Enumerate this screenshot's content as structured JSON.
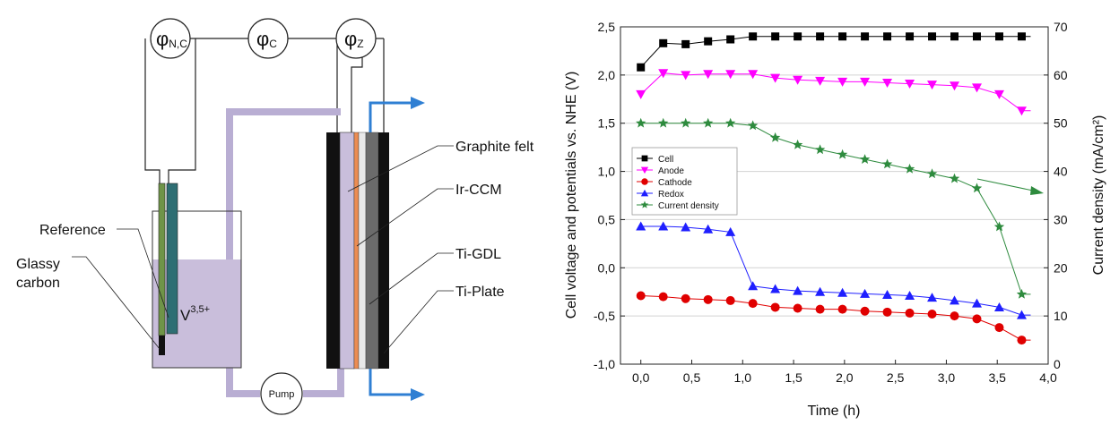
{
  "schematic": {
    "meter_left_base": "φ",
    "meter_left_sub": "N,C",
    "meter_mid_base": "φ",
    "meter_mid_sub": "C",
    "meter_right_base": "φ",
    "meter_right_sub": "Z",
    "label_reference": "Reference",
    "label_glassy_1": "Glassy",
    "label_glassy_2": "carbon",
    "electrolyte_base": "V",
    "electrolyte_sup": "3,5+",
    "label_graphite_felt": "Graphite felt",
    "label_ir_ccm": "Ir-CCM",
    "label_ti_gdl": "Ti-GDL",
    "label_ti_plate": "Ti-Plate",
    "pump_label": "Pump",
    "colors": {
      "tubing": "#b9aed3",
      "electrolyte": "#c9bedb",
      "flow_arrow": "#2f7fd3",
      "plate": "#111111",
      "membrane": "#ec8c52",
      "felt": "#6b6b6b",
      "reference_electrode": "#2e6e73",
      "glassy_electrode": "#6f9448"
    }
  },
  "chart_data": {
    "type": "line",
    "xlabel": "Time (h)",
    "ylabel": "Cell voltage and potentials vs. NHE (V)",
    "y2label": "Current density (mA/cm²)",
    "xlim": [
      -0.2,
      4.0
    ],
    "ylim": [
      -1.0,
      2.5
    ],
    "y2lim": [
      0,
      70
    ],
    "x_ticks": [
      "0,0",
      "0,5",
      "1,0",
      "1,5",
      "2,0",
      "2,5",
      "3,0",
      "3,5",
      "4,0"
    ],
    "y_ticks": [
      "-1,0",
      "-0,5",
      "0,0",
      "0,5",
      "1,0",
      "1,5",
      "2,0",
      "2,5"
    ],
    "y2_ticks": [
      "0",
      "10",
      "20",
      "30",
      "40",
      "50",
      "60",
      "70"
    ],
    "grid": "horizontal",
    "legend_position": "middle-left",
    "series": [
      {
        "name": "Cell",
        "axis": "left",
        "marker": "square",
        "color": "#000000",
        "x": [
          0.0,
          0.22,
          0.44,
          0.66,
          0.88,
          1.1,
          1.32,
          1.54,
          1.76,
          1.98,
          2.2,
          2.42,
          2.64,
          2.86,
          3.08,
          3.3,
          3.52,
          3.74
        ],
        "y": [
          2.08,
          2.33,
          2.32,
          2.35,
          2.37,
          2.4,
          2.4,
          2.4,
          2.4,
          2.4,
          2.4,
          2.4,
          2.4,
          2.4,
          2.4,
          2.4,
          2.4,
          2.4
        ]
      },
      {
        "name": "Anode",
        "axis": "left",
        "marker": "triangle-down",
        "color": "#ff00ff",
        "x": [
          0.0,
          0.22,
          0.44,
          0.66,
          0.88,
          1.1,
          1.32,
          1.54,
          1.76,
          1.98,
          2.2,
          2.42,
          2.64,
          2.86,
          3.08,
          3.3,
          3.52,
          3.74
        ],
        "y": [
          1.8,
          2.02,
          2.0,
          2.01,
          2.01,
          2.01,
          1.97,
          1.95,
          1.94,
          1.93,
          1.93,
          1.92,
          1.91,
          1.9,
          1.89,
          1.87,
          1.8,
          1.63
        ]
      },
      {
        "name": "Cathode",
        "axis": "left",
        "marker": "circle",
        "color": "#e00000",
        "x": [
          0.0,
          0.22,
          0.44,
          0.66,
          0.88,
          1.1,
          1.32,
          1.54,
          1.76,
          1.98,
          2.2,
          2.42,
          2.64,
          2.86,
          3.08,
          3.3,
          3.52,
          3.74
        ],
        "y": [
          -0.29,
          -0.3,
          -0.32,
          -0.33,
          -0.34,
          -0.37,
          -0.41,
          -0.42,
          -0.43,
          -0.43,
          -0.45,
          -0.46,
          -0.47,
          -0.48,
          -0.5,
          -0.53,
          -0.62,
          -0.75
        ]
      },
      {
        "name": "Redox",
        "axis": "left",
        "marker": "triangle-up",
        "color": "#1f1fff",
        "x": [
          0.0,
          0.22,
          0.44,
          0.66,
          0.88,
          1.1,
          1.32,
          1.54,
          1.76,
          1.98,
          2.2,
          2.42,
          2.64,
          2.86,
          3.08,
          3.3,
          3.52,
          3.74
        ],
        "y": [
          0.43,
          0.43,
          0.42,
          0.4,
          0.37,
          -0.19,
          -0.22,
          -0.24,
          -0.25,
          -0.26,
          -0.27,
          -0.28,
          -0.29,
          -0.31,
          -0.34,
          -0.37,
          -0.41,
          -0.49
        ]
      },
      {
        "name": "Current density",
        "axis": "right",
        "marker": "star",
        "color": "#2e8b3e",
        "x": [
          0.0,
          0.22,
          0.44,
          0.66,
          0.88,
          1.1,
          1.32,
          1.54,
          1.76,
          1.98,
          2.2,
          2.42,
          2.64,
          2.86,
          3.08,
          3.3,
          3.52,
          3.74
        ],
        "y": [
          50,
          50,
          50,
          50,
          50,
          49.5,
          47,
          45.5,
          44.5,
          43.5,
          42.5,
          41.5,
          40.5,
          39.5,
          38.5,
          36.5,
          28.5,
          14.5
        ]
      }
    ],
    "annotation_arrow": "points toward right y-axis"
  }
}
